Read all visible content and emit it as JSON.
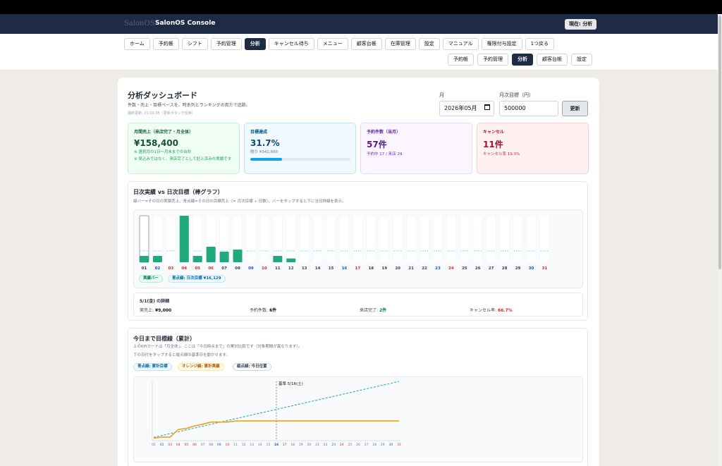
{
  "app": {
    "logo_text": "SalonOS",
    "title": "SalonOS Console",
    "now_badge": "現在: 分析"
  },
  "nav_primary": [
    "ホーム",
    "予約帳",
    "シフト",
    "予約管理",
    "分析",
    "キャンセル待ち",
    "メニュー",
    "顧客台帳",
    "在庫管理",
    "設定",
    "マニュアル",
    "権限付与設定",
    "1つ戻る"
  ],
  "nav_primary_active": "分析",
  "nav_secondary": [
    "予約帳",
    "予約管理",
    "分析",
    "顧客台帳",
    "設定"
  ],
  "nav_secondary_active": "分析",
  "header": {
    "title": "分析ダッシュボード",
    "subtitle": "件数・売上・目標ペースを、時系列とランキングの両方で追跡。",
    "updated": "最終更新: 21:00:35（更新ボタンで反映）"
  },
  "filters": {
    "month_label": "月",
    "month_value": "2026年05月",
    "target_label": "月次目標（円）",
    "target_value": "500000",
    "update_button": "更新"
  },
  "kpis": {
    "sales": {
      "title": "月間売上（来店完了・月全体）",
      "value": "¥158,400",
      "note1": "※ 選択月の1日〜月末までの合計",
      "note2": "※ 見込みではなく、来店完了として記上済みの実績です"
    },
    "target": {
      "title": "目標達成",
      "value": "31.7%",
      "note": "残り ¥341,600",
      "progress": 0.317
    },
    "bookings": {
      "title": "予約件数（当月）",
      "value": "57件",
      "note": "予約中 17 / 来店 29"
    },
    "cancel": {
      "title": "キャンセル",
      "value": "11件",
      "note": "キャンセル率 19.3%"
    }
  },
  "daily": {
    "title": "日次実績 vs 日次目標（棒グラフ）",
    "desc": "緑バー=その日の実績売上、青点線=その日の目標売上（= 月次目標 ÷ 日数）。バーをタップすると下に当日詳細を表示。",
    "legend_bar": "実績バー",
    "legend_line": "青点線: 日次目標 ¥16,129",
    "detail": {
      "title": "5/1(金) の詳細",
      "sales_label": "実売上: ",
      "sales_value": "¥9,000",
      "bookings_label": "予約件数: ",
      "bookings_value": "6件",
      "visits_label": "来店完了: ",
      "visits_value": "2件",
      "cancel_label": "キャンセル率: ",
      "cancel_value": "66.7%"
    }
  },
  "cumulative": {
    "title": "今日まで目標線（累計）",
    "desc1": "上のKPIカードは「月全体」。ここは「今日時点まで」の累計比較です（対象期間が異なります）。",
    "desc2": "下の日付をタップすると縦点線の基準日を動かせます。",
    "legend_target": "青点線: 累計目標",
    "legend_actual": "オレンジ線: 累計実績",
    "legend_vline": "縦点線: 今日位置",
    "ref_label": "基準 5/16(土)",
    "ref_day": 16
  },
  "chart_data": [
    {
      "type": "bar",
      "title": "日次実績 vs 日次目標（棒グラフ）",
      "categories": [
        "01",
        "02",
        "03",
        "04",
        "05",
        "06",
        "07",
        "08",
        "09",
        "10",
        "11",
        "12",
        "13",
        "14",
        "15",
        "16",
        "17",
        "18",
        "19",
        "20",
        "21",
        "22",
        "23",
        "24",
        "25",
        "26",
        "27",
        "28",
        "29",
        "30",
        "31"
      ],
      "series": [
        {
          "name": "実績バー",
          "values": [
            9000,
            9000,
            0,
            66000,
            9000,
            22000,
            15000,
            18000,
            0,
            0,
            9000,
            5400,
            0,
            0,
            0,
            0,
            0,
            0,
            0,
            0,
            0,
            0,
            0,
            0,
            0,
            0,
            0,
            0,
            0,
            0,
            0
          ]
        }
      ],
      "target_daily": 16129,
      "ymax": 66000,
      "weekend_sat": [
        "02",
        "09",
        "16",
        "23",
        "30"
      ],
      "weekend_sun_holiday": [
        "03",
        "04",
        "05",
        "06",
        "10",
        "17",
        "24",
        "31"
      ],
      "colors": {
        "bar": "#1fa97d",
        "target": "#38bdf8",
        "sat": "#1d4ed8",
        "sun": "#dc2626"
      }
    },
    {
      "type": "line",
      "title": "今日まで目標線（累計）",
      "x": [
        1,
        2,
        3,
        4,
        5,
        6,
        7,
        8,
        9,
        10,
        11,
        12,
        13,
        14,
        15,
        16,
        17,
        18,
        19,
        20,
        21,
        22,
        23,
        24,
        25,
        26,
        27,
        28,
        29,
        30,
        31
      ],
      "series": [
        {
          "name": "累計目標",
          "values": [
            16129,
            32258,
            48387,
            64516,
            80645,
            96774,
            112903,
            129032,
            145161,
            161290,
            177419,
            193548,
            209677,
            225806,
            241935,
            258065,
            274194,
            290323,
            306452,
            322581,
            338710,
            354839,
            370968,
            387097,
            403226,
            419355,
            435484,
            451613,
            467742,
            483871,
            500000
          ]
        },
        {
          "name": "累計実績",
          "values": [
            9000,
            18000,
            18000,
            84000,
            93000,
            115000,
            130000,
            148000,
            148000,
            148000,
            157000,
            158400,
            158400,
            158400,
            158400,
            158400,
            158400,
            158400,
            158400,
            158400,
            158400,
            158400,
            158400,
            158400,
            158400,
            158400,
            158400,
            158400,
            158400,
            158400,
            158400
          ]
        }
      ],
      "ymax": 500000,
      "colors": {
        "target": "#0ea5c6",
        "actual": "#f59e0b",
        "vline": "#6b7280"
      }
    }
  ]
}
